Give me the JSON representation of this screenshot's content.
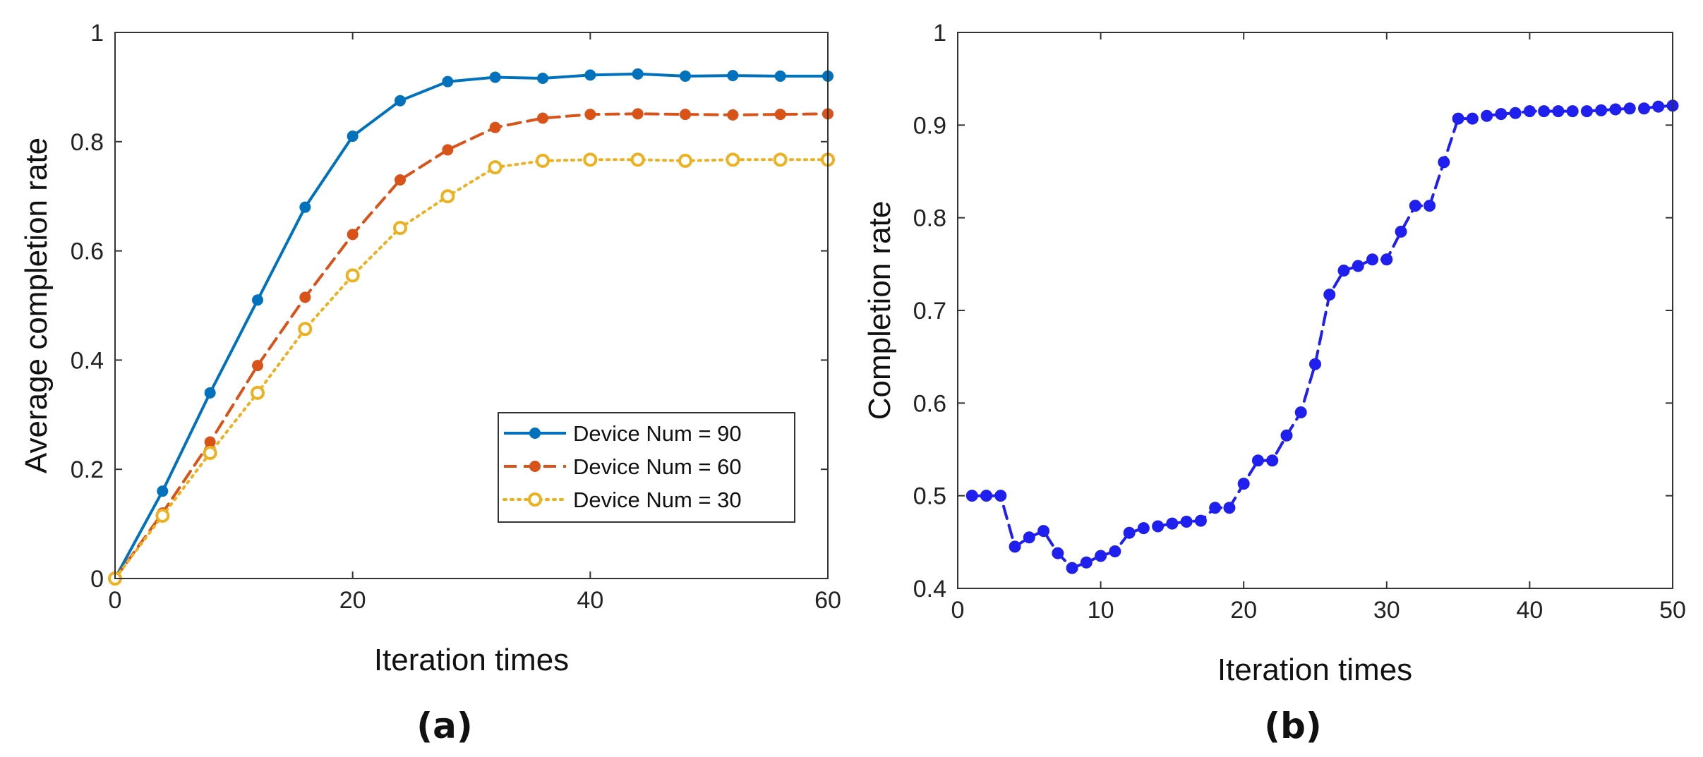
{
  "chart_data": [
    {
      "type": "line",
      "panel_label": "(a)",
      "xlabel": "Iteration times",
      "ylabel": "Average completion rate",
      "xlim": [
        0,
        60
      ],
      "ylim": [
        0,
        1
      ],
      "xticks": [
        0,
        20,
        40,
        60
      ],
      "yticks": [
        0,
        0.2,
        0.4,
        0.6,
        0.8,
        1
      ],
      "ytick_labels": [
        "0",
        "0.2",
        "0.4",
        "0.6",
        "0.8",
        "1"
      ],
      "legend_position": "bottom-right",
      "series": [
        {
          "name": "Device Num = 90",
          "color": "#0072BD",
          "line_style": "solid",
          "marker": "filled-circle",
          "x": [
            0,
            4,
            8,
            12,
            16,
            20,
            24,
            28,
            32,
            36,
            40,
            44,
            48,
            52,
            56,
            60
          ],
          "y": [
            0,
            0.16,
            0.34,
            0.51,
            0.68,
            0.81,
            0.875,
            0.91,
            0.918,
            0.916,
            0.922,
            0.924,
            0.92,
            0.921,
            0.92,
            0.92
          ]
        },
        {
          "name": "Device Num = 60",
          "color": "#D95319",
          "line_style": "dashed",
          "marker": "filled-circle",
          "x": [
            0,
            4,
            8,
            12,
            16,
            20,
            24,
            28,
            32,
            36,
            40,
            44,
            48,
            52,
            56,
            60
          ],
          "y": [
            0,
            0.12,
            0.25,
            0.39,
            0.515,
            0.63,
            0.73,
            0.785,
            0.826,
            0.843,
            0.85,
            0.851,
            0.85,
            0.849,
            0.85,
            0.851
          ]
        },
        {
          "name": "Device Num = 30",
          "color": "#EDB120",
          "line_style": "dotted",
          "marker": "open-circle",
          "x": [
            0,
            4,
            8,
            12,
            16,
            20,
            24,
            28,
            32,
            36,
            40,
            44,
            48,
            52,
            56,
            60
          ],
          "y": [
            0,
            0.115,
            0.23,
            0.34,
            0.457,
            0.555,
            0.642,
            0.7,
            0.753,
            0.765,
            0.767,
            0.767,
            0.765,
            0.767,
            0.767,
            0.767
          ]
        }
      ]
    },
    {
      "type": "line",
      "panel_label": "(b)",
      "xlabel": "Iteration times",
      "ylabel": "Completion rate",
      "xlim": [
        0,
        50
      ],
      "ylim": [
        0.4,
        1
      ],
      "xticks": [
        0,
        10,
        20,
        30,
        40,
        50
      ],
      "yticks": [
        0.4,
        0.5,
        0.6,
        0.7,
        0.8,
        0.9,
        1
      ],
      "ytick_labels": [
        "0.4",
        "0.5",
        "0.6",
        "0.7",
        "0.8",
        "0.9",
        "1"
      ],
      "series": [
        {
          "name": "Completion rate",
          "color": "#1F1FF0",
          "line_style": "dashed",
          "marker": "filled-circle",
          "x": [
            1,
            2,
            3,
            4,
            5,
            6,
            7,
            8,
            9,
            10,
            11,
            12,
            13,
            14,
            15,
            16,
            17,
            18,
            19,
            20,
            21,
            22,
            23,
            24,
            25,
            26,
            27,
            28,
            29,
            30,
            31,
            32,
            33,
            34,
            35,
            36,
            37,
            38,
            39,
            40,
            41,
            42,
            43,
            44,
            45,
            46,
            47,
            48,
            49,
            50
          ],
          "y": [
            0.5,
            0.5,
            0.5,
            0.445,
            0.455,
            0.462,
            0.438,
            0.422,
            0.428,
            0.435,
            0.44,
            0.46,
            0.465,
            0.467,
            0.47,
            0.472,
            0.473,
            0.487,
            0.487,
            0.513,
            0.538,
            0.538,
            0.565,
            0.59,
            0.642,
            0.717,
            0.743,
            0.748,
            0.755,
            0.755,
            0.785,
            0.813,
            0.813,
            0.86,
            0.907,
            0.907,
            0.91,
            0.912,
            0.913,
            0.915,
            0.915,
            0.915,
            0.915,
            0.915,
            0.916,
            0.917,
            0.918,
            0.918,
            0.92,
            0.921
          ]
        }
      ]
    }
  ]
}
